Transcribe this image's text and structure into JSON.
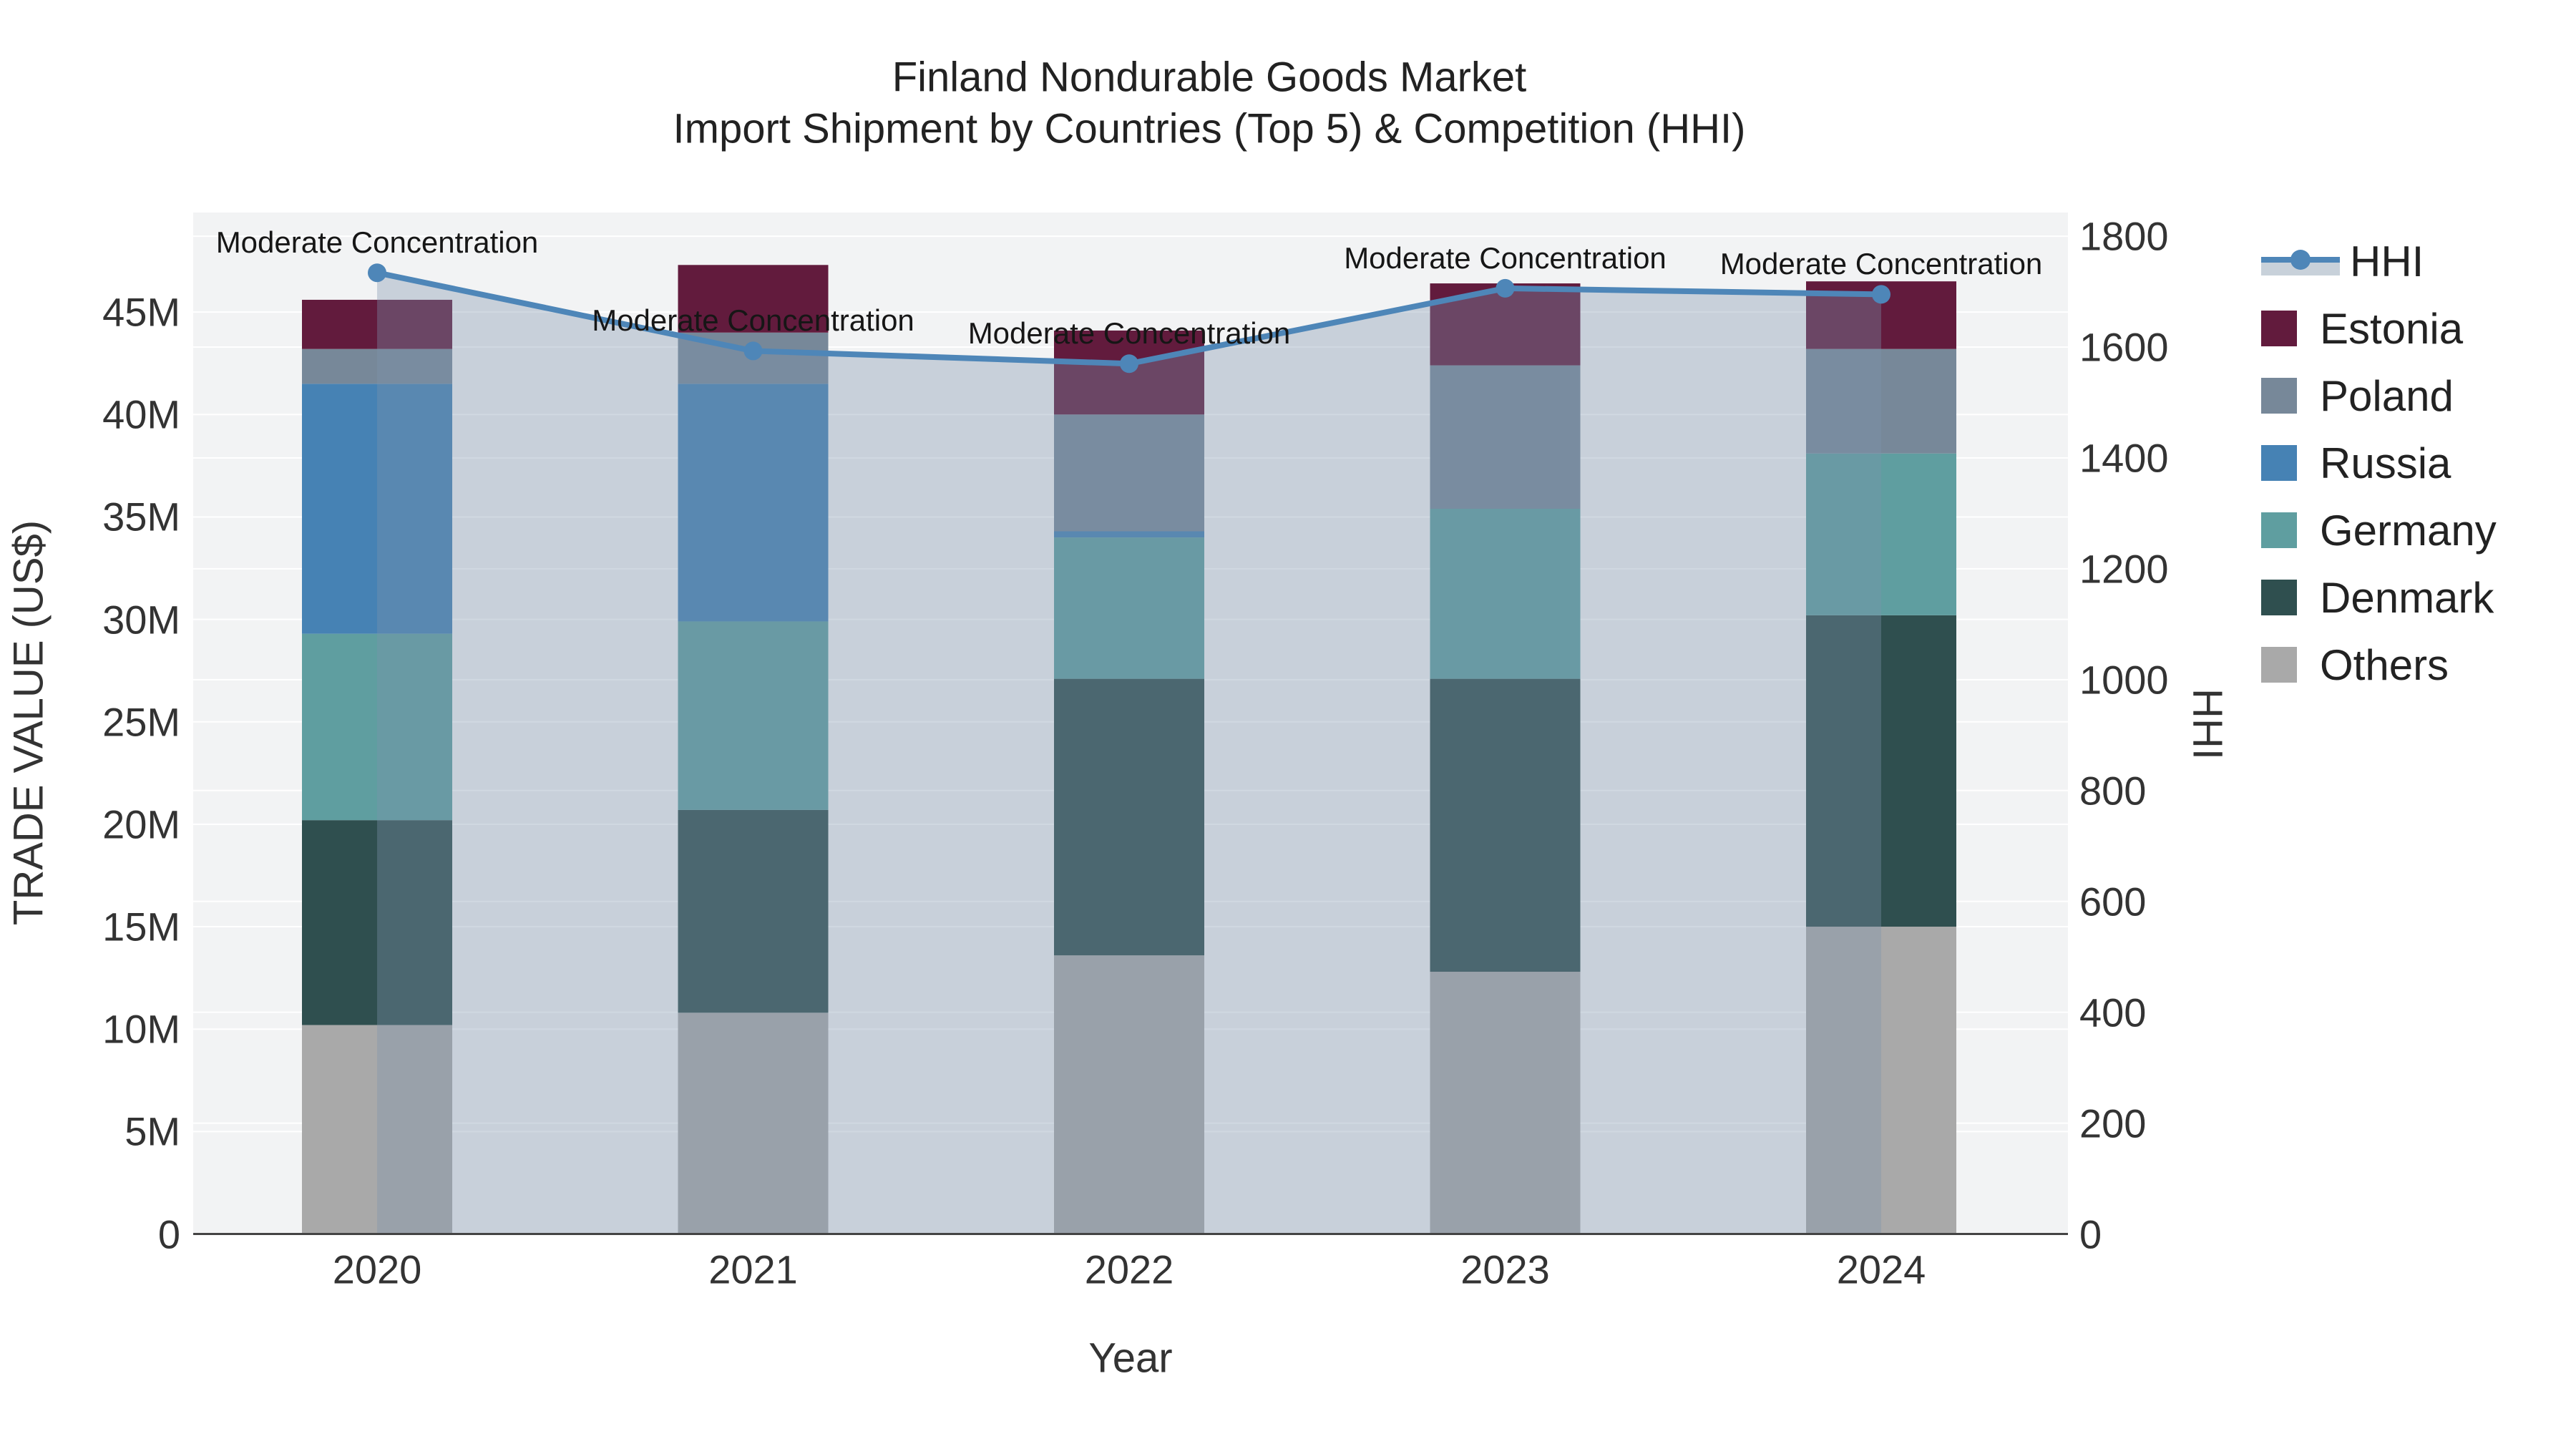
{
  "title": {
    "line1": "Finland Nondurable Goods Market",
    "line2": "Import Shipment by Countries (Top 5) & Competition (HHI)"
  },
  "axes": {
    "x": {
      "title": "Year",
      "categories": [
        "2020",
        "2021",
        "2022",
        "2023",
        "2024"
      ]
    },
    "y_left": {
      "title": "TRADE VALUE (US$)",
      "tick_labels": [
        "0",
        "5M",
        "10M",
        "15M",
        "20M",
        "25M",
        "30M",
        "35M",
        "40M",
        "45M"
      ],
      "tick_values": [
        0,
        5,
        10,
        15,
        20,
        25,
        30,
        35,
        40,
        45
      ],
      "max_value": 49.86
    },
    "y_right": {
      "title": "HHI",
      "tick_labels": [
        "0",
        "200",
        "400",
        "600",
        "800",
        "1000",
        "1200",
        "1400",
        "1600",
        "1800"
      ],
      "tick_values": [
        0,
        200,
        400,
        600,
        800,
        1000,
        1200,
        1400,
        1600,
        1800
      ],
      "max_value": 1842.7
    }
  },
  "legend": {
    "items": [
      {
        "label": "HHI",
        "type": "line",
        "color": "#4e86b8",
        "fill": "#c8d1da"
      },
      {
        "label": "Estonia",
        "type": "swatch",
        "color": "#621b3d"
      },
      {
        "label": "Poland",
        "type": "swatch",
        "color": "#778899"
      },
      {
        "label": "Russia",
        "type": "swatch",
        "color": "#4682b4"
      },
      {
        "label": "Germany",
        "type": "swatch",
        "color": "#5f9ea0"
      },
      {
        "label": "Denmark",
        "type": "swatch",
        "color": "#2f4f4f"
      },
      {
        "label": "Others",
        "type": "swatch",
        "color": "#a9a9a9"
      }
    ]
  },
  "annotation_text": "Moderate Concentration",
  "chart_data": {
    "type": "bar+line",
    "unit_left": "Trade value, millions US$",
    "unit_right": "HHI index",
    "categories": [
      "2020",
      "2021",
      "2022",
      "2023",
      "2024"
    ],
    "stack_order_bottom_to_top": [
      "Others",
      "Denmark",
      "Germany",
      "Russia",
      "Poland",
      "Estonia"
    ],
    "series": [
      {
        "name": "Others",
        "color": "#a9a9a9",
        "values": [
          10.2,
          10.8,
          13.6,
          12.8,
          15.0
        ]
      },
      {
        "name": "Denmark",
        "color": "#2f4f4f",
        "values": [
          10.0,
          9.9,
          13.5,
          14.3,
          15.2
        ]
      },
      {
        "name": "Germany",
        "color": "#5f9ea0",
        "values": [
          9.1,
          9.2,
          6.9,
          8.3,
          7.9
        ]
      },
      {
        "name": "Russia",
        "color": "#4682b4",
        "values": [
          12.2,
          11.6,
          0.3,
          0.0,
          0.0
        ]
      },
      {
        "name": "Poland",
        "color": "#778899",
        "values": [
          1.7,
          2.5,
          5.7,
          7.0,
          5.1
        ]
      },
      {
        "name": "Estonia",
        "color": "#621b3d",
        "values": [
          2.4,
          3.3,
          4.1,
          4.0,
          3.3
        ]
      }
    ],
    "totals": [
      45.6,
      47.3,
      44.1,
      46.4,
      46.5
    ],
    "hhi": {
      "name": "HHI",
      "color": "#4e86b8",
      "fill_color": "rgba(125,148,172,0.36)",
      "values": [
        1734,
        1593,
        1570,
        1706,
        1695
      ],
      "annotations": [
        "Moderate Concentration",
        "Moderate Concentration",
        "Moderate Concentration",
        "Moderate Concentration",
        "Moderate Concentration"
      ]
    },
    "grid": {
      "color": "#ffffff",
      "left_axis_grid": true,
      "right_axis_grid": true
    },
    "plot_background": "#f2f3f4",
    "axis_line_color": "#444444"
  }
}
